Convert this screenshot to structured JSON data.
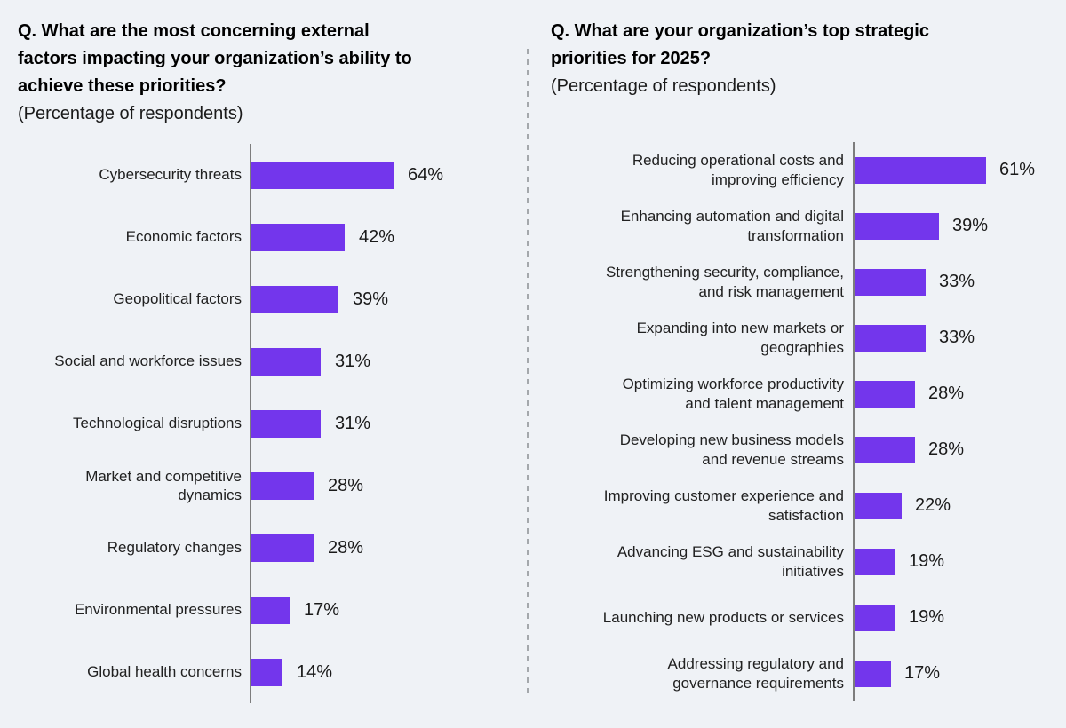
{
  "page": {
    "background_color": "#eff2f6",
    "accent_color": "#7336ec",
    "axis_color": "#7d7d7d",
    "divider_style": "vertical dashed gray line between the two charts"
  },
  "chart_data": [
    {
      "type": "bar",
      "orientation": "horizontal",
      "title": "Q. What are the most concerning external factors impacting your organization’s ability to achieve these priorities?",
      "title_lines": [
        "Q. What are the most concerning external",
        "factors impacting your organization’s ability to",
        "achieve these priorities?"
      ],
      "subtitle": "(Percentage of respondents)",
      "categories": [
        "Cybersecurity threats",
        "Economic factors",
        "Geopolitical factors",
        "Social and workforce issues",
        "Technological disruptions",
        "Market and competitive\ndynamics",
        "Regulatory changes",
        "Environmental pressures",
        "Global health concerns"
      ],
      "values": [
        64,
        42,
        39,
        31,
        31,
        28,
        28,
        17,
        14
      ],
      "value_suffix": "%",
      "xlim": [
        0,
        70
      ],
      "grid": false,
      "value_labels": "right of each bar",
      "bar_color": "#7336ec"
    },
    {
      "type": "bar",
      "orientation": "horizontal",
      "title": "Q. What are your organization’s top strategic priorities for 2025?",
      "title_lines": [
        "Q. What are your organization’s top strategic",
        "priorities for 2025?"
      ],
      "subtitle": "(Percentage of respondents)",
      "categories": [
        "Reducing operational costs and\nimproving efficiency",
        "Enhancing automation and digital\ntransformation",
        "Strengthening security, compliance,\nand risk management",
        "Expanding into new markets or\ngeographies",
        "Optimizing workforce productivity\nand talent management",
        "Developing new business models\nand revenue streams",
        "Improving customer experience and\nsatisfaction",
        "Advancing ESG and sustainability\ninitiatives",
        "Launching new products or services",
        "Addressing regulatory and\ngovernance requirements"
      ],
      "values": [
        61,
        39,
        33,
        33,
        28,
        28,
        22,
        19,
        19,
        17
      ],
      "value_suffix": "%",
      "xlim": [
        0,
        70
      ],
      "grid": false,
      "value_labels": "right of each bar",
      "bar_color": "#7336ec"
    }
  ]
}
